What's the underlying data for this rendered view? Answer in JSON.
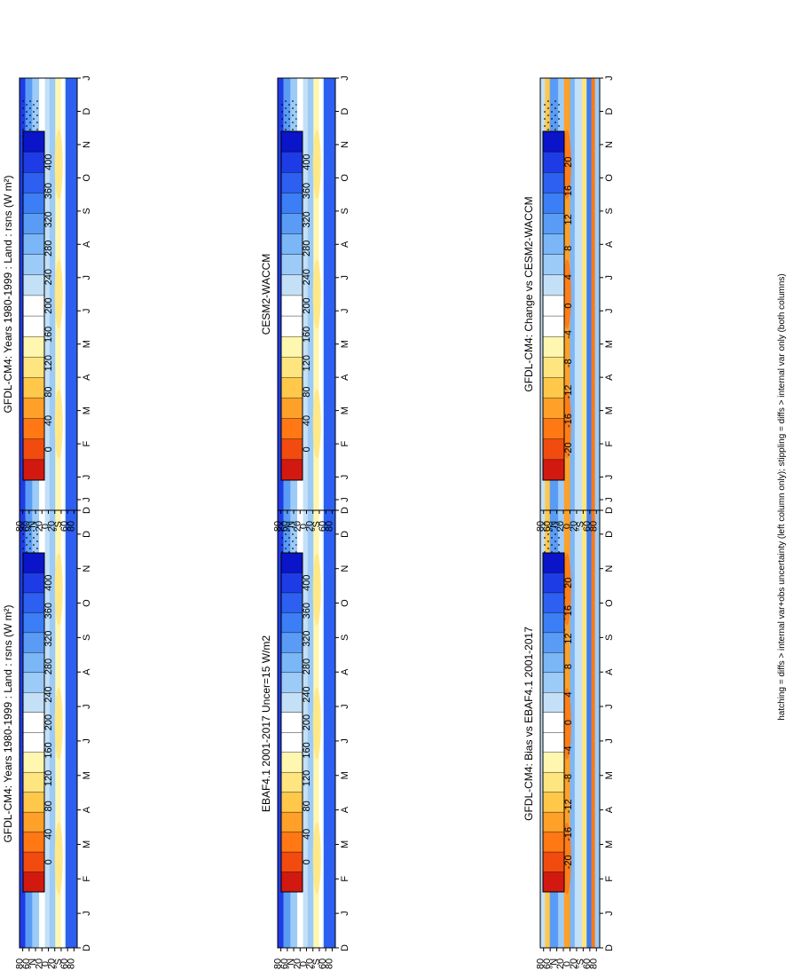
{
  "figure_footnote": "hatching = diffs > internal var+obs uncertainty (left column only); stippling = diffs > internal var only (both columns)",
  "colorbars": {
    "abs": {
      "ticks": [
        "0",
        "40",
        "80",
        "120",
        "160",
        "200",
        "240",
        "280",
        "320",
        "360",
        "400"
      ],
      "colors": [
        "#0a14c8",
        "#1e3ce6",
        "#2d5ff0",
        "#3c7ef5",
        "#5a9cf5",
        "#7bb6f7",
        "#9ccbf8",
        "#c4e0f7",
        "#ffffff",
        "#ffffff",
        "#fff7b0",
        "#ffe580",
        "#ffc84a",
        "#ffa028",
        "#ff7814",
        "#f24b0f",
        "#d2190f"
      ]
    },
    "diff": {
      "ticks": [
        "-20",
        "-16",
        "-12",
        "-8",
        "-4",
        "0",
        "4",
        "8",
        "12",
        "16",
        "20"
      ],
      "colors": [
        "#0a14c8",
        "#1e3ce6",
        "#2d5ff0",
        "#3c7ef5",
        "#5a9cf5",
        "#7bb6f7",
        "#9ccbf8",
        "#c4e0f7",
        "#ffffff",
        "#ffffff",
        "#fff7b0",
        "#ffe580",
        "#ffc84a",
        "#ffa028",
        "#ff7814",
        "#f24b0f",
        "#d2190f"
      ]
    }
  },
  "chart_data": [
    {
      "type": "heatmap",
      "title": "GFDL-CM4: Years 1980-1999 : Land : rsns (W m²)",
      "x_ticks": [
        "D",
        "J",
        "F",
        "M",
        "A",
        "M",
        "J",
        "J",
        "A",
        "S",
        "O",
        "N",
        "D",
        "J"
      ],
      "y_ticks": [
        "80",
        "60",
        "°N",
        "20",
        "0",
        "20",
        "°S",
        "60",
        "80"
      ],
      "ylim": [
        -90,
        90
      ],
      "colorbar": "abs",
      "overlays": [
        "hatching",
        "stippling"
      ]
    },
    {
      "type": "heatmap",
      "title": "GFDL-CM4: Years 1980-1999 : Land : rsns (W m²)",
      "x_ticks": [
        "D",
        "J",
        "F",
        "M",
        "A",
        "M",
        "J",
        "J",
        "A",
        "S",
        "O",
        "N",
        "D",
        "J"
      ],
      "y_ticks": [
        "80",
        "60",
        "°N",
        "20",
        "0",
        "20",
        "°S",
        "60",
        "80"
      ],
      "ylim": [
        -90,
        90
      ],
      "colorbar": "abs",
      "overlays": [
        "stippling"
      ]
    },
    {
      "type": "heatmap",
      "title": "EBAF4.1 2001-2017 Uncer=15 W/m2",
      "x_ticks": [
        "D",
        "J",
        "F",
        "M",
        "A",
        "M",
        "J",
        "J",
        "A",
        "S",
        "O",
        "N",
        "D",
        "J"
      ],
      "y_ticks": [
        "80",
        "60",
        "°N",
        "20",
        "0",
        "20",
        "°S",
        "60",
        "80"
      ],
      "ylim": [
        -90,
        90
      ],
      "colorbar": "abs",
      "overlays": [
        "hatching",
        "stippling"
      ]
    },
    {
      "type": "heatmap",
      "title": "CESM2-WACCM",
      "x_ticks": [
        "D",
        "J",
        "F",
        "M",
        "A",
        "M",
        "J",
        "J",
        "A",
        "S",
        "O",
        "N",
        "D",
        "J"
      ],
      "y_ticks": [
        "80",
        "60",
        "°N",
        "20",
        "0",
        "20",
        "°S",
        "60",
        "80"
      ],
      "ylim": [
        -90,
        90
      ],
      "colorbar": "abs",
      "overlays": [
        "stippling"
      ]
    },
    {
      "type": "heatmap",
      "title": "GFDL-CM4: Bias vs EBAF4.1 2001-2017",
      "x_ticks": [
        "D",
        "J",
        "F",
        "M",
        "A",
        "M",
        "J",
        "J",
        "A",
        "S",
        "O",
        "N",
        "D",
        "J"
      ],
      "y_ticks": [
        "80",
        "60",
        "°N",
        "20",
        "0",
        "20",
        "°S",
        "60",
        "80"
      ],
      "ylim": [
        -90,
        90
      ],
      "colorbar": "diff",
      "overlays": [
        "hatching",
        "stippling"
      ]
    },
    {
      "type": "heatmap",
      "title": "GFDL-CM4: Change vs CESM2-WACCM",
      "x_ticks": [
        "D",
        "J",
        "F",
        "M",
        "A",
        "M",
        "J",
        "J",
        "A",
        "S",
        "O",
        "N",
        "D",
        "J"
      ],
      "y_ticks": [
        "80",
        "60",
        "°N",
        "20",
        "0",
        "20",
        "°S",
        "60",
        "80"
      ],
      "ylim": [
        -90,
        90
      ],
      "colorbar": "diff",
      "overlays": [
        "stippling"
      ]
    }
  ]
}
